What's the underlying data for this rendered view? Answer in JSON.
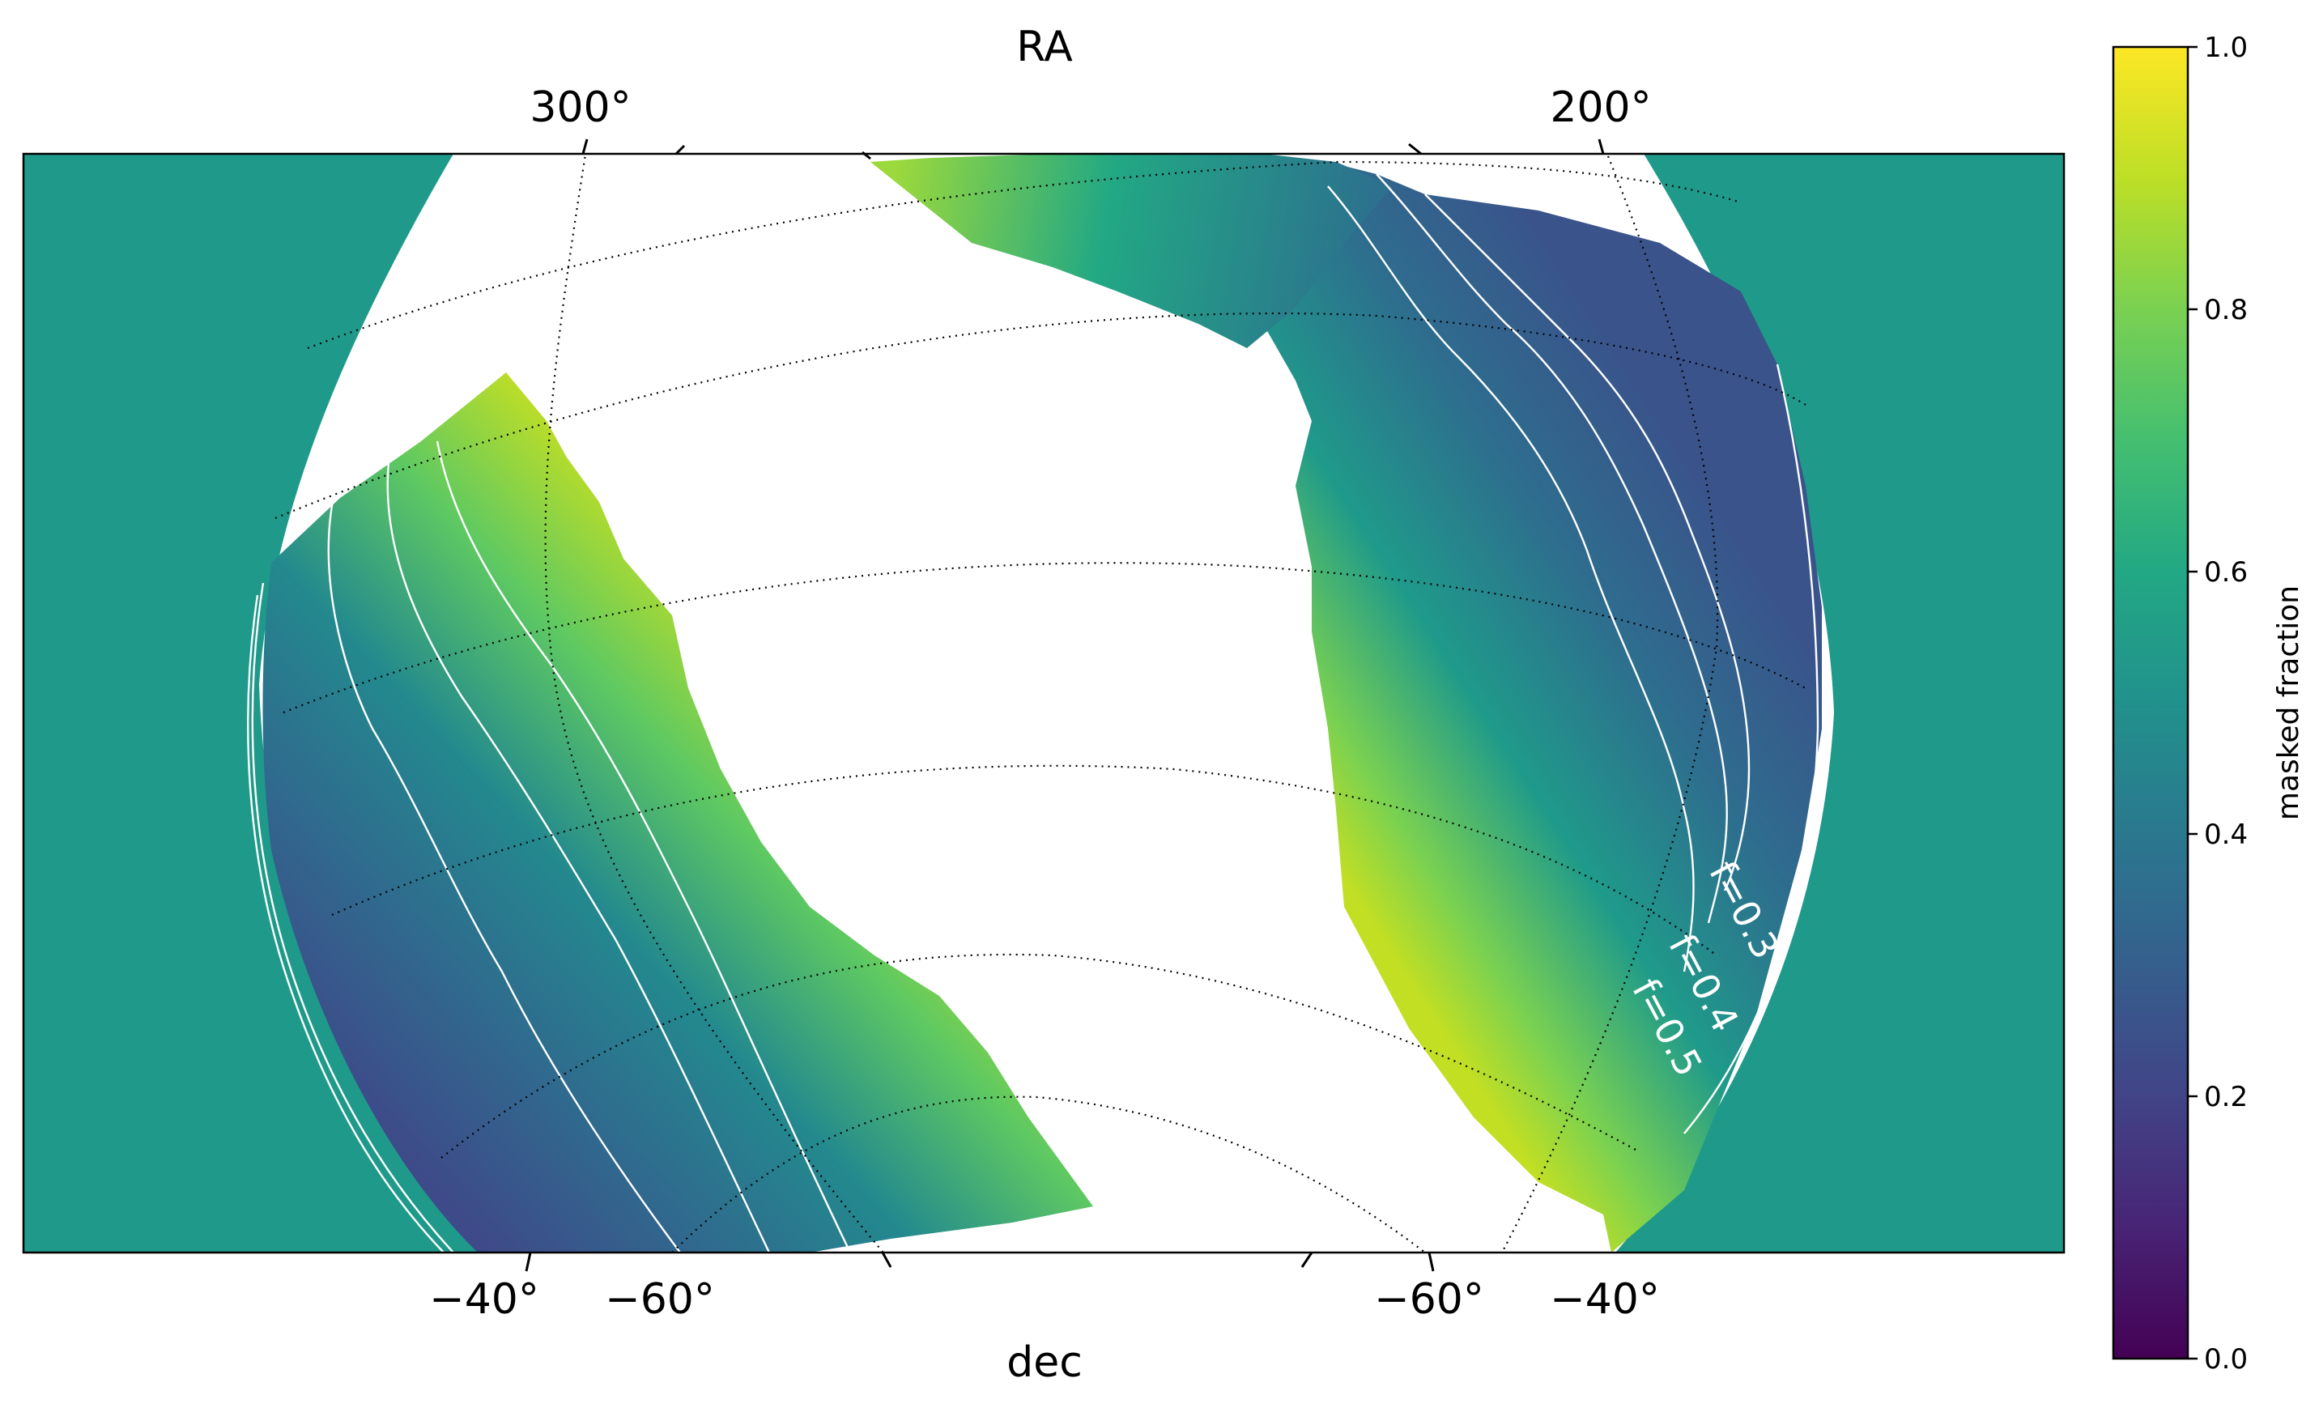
{
  "chart_data": {
    "type": "heatmap",
    "title": "RA",
    "xlabel": "dec",
    "ra_tick_labels": [
      "300°",
      "200°"
    ],
    "dec_tick_labels": [
      "−40°",
      "−60°",
      "−60°",
      "−40°"
    ],
    "colorbar": {
      "label": "masked fraction",
      "colormap": "viridis",
      "range": [
        0.0,
        1.0
      ],
      "tick_labels": [
        "0.0",
        "0.2",
        "0.4",
        "0.6",
        "0.8",
        "1.0"
      ]
    },
    "contours": [
      {
        "label": "f=0.3",
        "level": 0.3
      },
      {
        "label": "f=0.4",
        "level": 0.4
      },
      {
        "label": "f=0.5",
        "level": 0.5
      }
    ],
    "background_color": "#1f9a8a",
    "contour_color": "#ffffff",
    "graticule": "dotted"
  }
}
